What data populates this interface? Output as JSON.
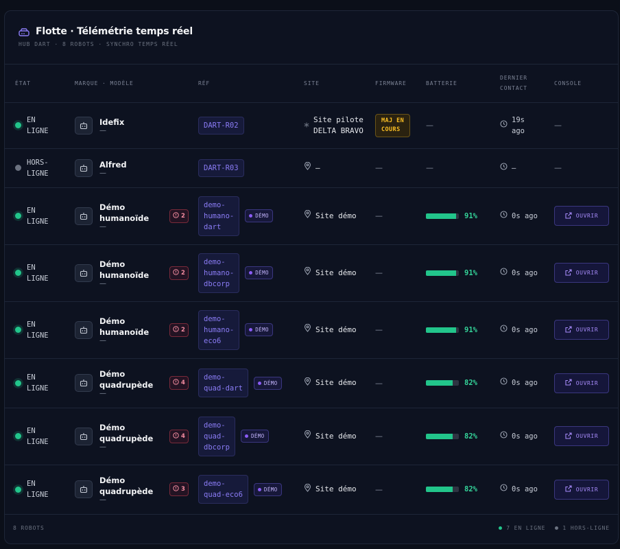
{
  "header": {
    "title": "Flotte · Télémétrie temps réel",
    "subtitle": "HUB DART · 8 ROBOTS · SYNCHRO TEMPS RÉEL"
  },
  "columns": {
    "state": "ÉTAT",
    "model": "MARQUE · MODÈLE",
    "ref": "RÉF",
    "site": "SITE",
    "firmware": "FIRMWARE",
    "battery": "BATTERIE",
    "last_contact_1": "DERNIER",
    "last_contact_2": "CONTACT",
    "console": "CONSOLE"
  },
  "rows": [
    {
      "status": "online",
      "status_l1": "EN",
      "status_l2": "LIGNE",
      "name": "Idefix",
      "sub": "—",
      "alerts": "",
      "ref": "DART-R02",
      "demo": "",
      "site_l1": "Site pilote",
      "site_l2": "DELTA BRAVO",
      "site_icon": "asterisk",
      "fw": "MAJ EN COURS",
      "battery": "—",
      "battery_pct": 0,
      "contact_l1": "19s",
      "contact_l2": "ago",
      "console": "—"
    },
    {
      "status": "offline",
      "status_l1": "HORS-",
      "status_l2": "LIGNE",
      "name": "Alfred",
      "sub": "—",
      "alerts": "",
      "ref": "DART-R03",
      "demo": "",
      "site_l1": "—",
      "site_l2": "",
      "site_icon": "pin",
      "fw": "—",
      "battery": "—",
      "battery_pct": 0,
      "contact_l1": "—",
      "contact_l2": "",
      "console": "—"
    },
    {
      "status": "online",
      "status_l1": "EN",
      "status_l2": "LIGNE",
      "name": "Démo humanoïde",
      "sub": "—",
      "alerts": "2",
      "ref": "demo-humano-dart",
      "demo": "DÉMO",
      "site_l1": "Site démo",
      "site_l2": "",
      "site_icon": "pin",
      "fw": "—",
      "battery": "91%",
      "battery_pct": 91,
      "contact_l1": "0s ago",
      "contact_l2": "",
      "console": "OUVRIR"
    },
    {
      "status": "online",
      "status_l1": "EN",
      "status_l2": "LIGNE",
      "name": "Démo humanoïde",
      "sub": "—",
      "alerts": "2",
      "ref": "demo-humano-dbcorp",
      "demo": "DÉMO",
      "site_l1": "Site démo",
      "site_l2": "",
      "site_icon": "pin",
      "fw": "—",
      "battery": "91%",
      "battery_pct": 91,
      "contact_l1": "0s ago",
      "contact_l2": "",
      "console": "OUVRIR"
    },
    {
      "status": "online",
      "status_l1": "EN",
      "status_l2": "LIGNE",
      "name": "Démo humanoïde",
      "sub": "—",
      "alerts": "2",
      "ref": "demo-humano-eco6",
      "demo": "DÉMO",
      "site_l1": "Site démo",
      "site_l2": "",
      "site_icon": "pin",
      "fw": "—",
      "battery": "91%",
      "battery_pct": 91,
      "contact_l1": "0s ago",
      "contact_l2": "",
      "console": "OUVRIR"
    },
    {
      "status": "online",
      "status_l1": "EN",
      "status_l2": "LIGNE",
      "name": "Démo quadrupède",
      "sub": "—",
      "alerts": "4",
      "ref": "demo-quad-dart",
      "demo": "DÉMO",
      "site_l1": "Site démo",
      "site_l2": "",
      "site_icon": "pin",
      "fw": "—",
      "battery": "82%",
      "battery_pct": 82,
      "contact_l1": "0s ago",
      "contact_l2": "",
      "console": "OUVRIR"
    },
    {
      "status": "online",
      "status_l1": "EN",
      "status_l2": "LIGNE",
      "name": "Démo quadrupède",
      "sub": "—",
      "alerts": "4",
      "ref": "demo-quad-dbcorp",
      "demo": "DÉMO",
      "site_l1": "Site démo",
      "site_l2": "",
      "site_icon": "pin",
      "fw": "—",
      "battery": "82%",
      "battery_pct": 82,
      "contact_l1": "0s ago",
      "contact_l2": "",
      "console": "OUVRIR"
    },
    {
      "status": "online",
      "status_l1": "EN",
      "status_l2": "LIGNE",
      "name": "Démo quadrupède",
      "sub": "—",
      "alerts": "3",
      "ref": "demo-quad-eco6",
      "demo": "DÉMO",
      "site_l1": "Site démo",
      "site_l2": "",
      "site_icon": "pin",
      "fw": "—",
      "battery": "82%",
      "battery_pct": 82,
      "contact_l1": "0s ago",
      "contact_l2": "",
      "console": "OUVRIR"
    }
  ],
  "footer": {
    "count": "8 ROBOTS",
    "online": "7 EN LIGNE",
    "offline": "1 HORS-LIGNE"
  },
  "colors": {
    "online": "#22c58b",
    "offline": "#6b7280",
    "accent": "#8b7cf6",
    "alert": "#f28b9f",
    "firmware": "#fbbf24"
  }
}
